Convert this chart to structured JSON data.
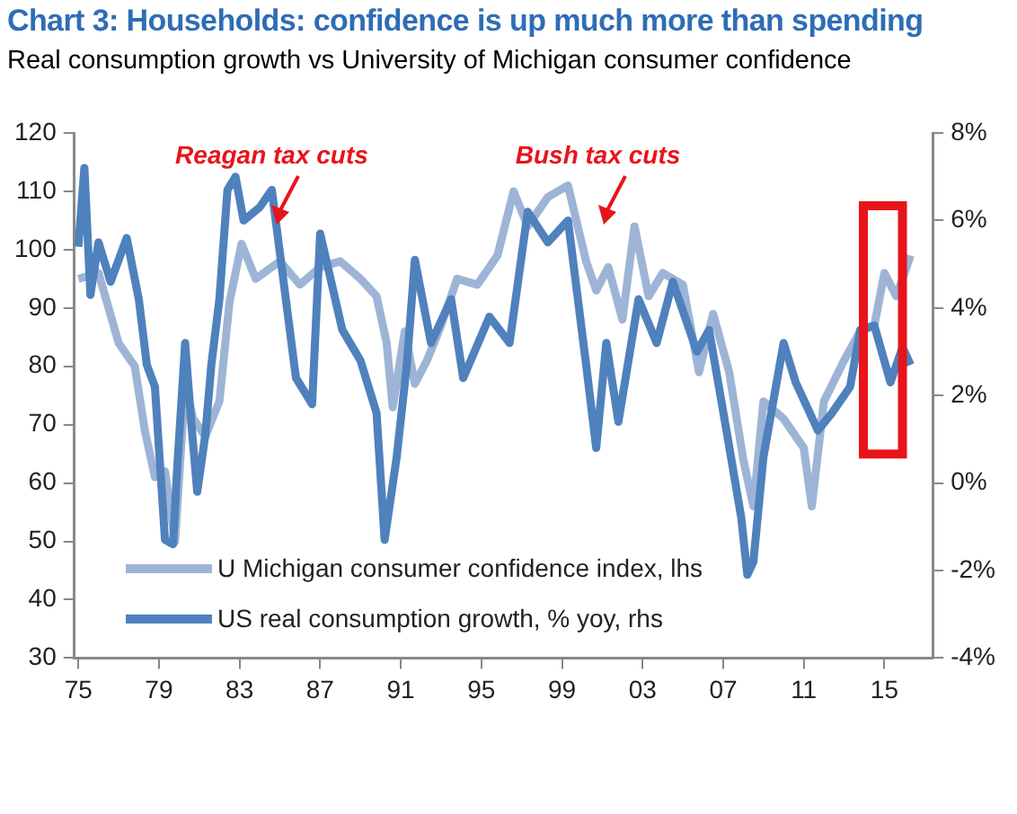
{
  "chart_data": {
    "type": "line",
    "title": "Chart 3: Households: confidence is up much more than spending",
    "subtitle": "Real consumption growth  vs University of Michigan consumer confidence",
    "annotations": [
      "Reagan tax cuts",
      "Bush tax cuts"
    ],
    "series": [
      {
        "name": "U Michigan consumer confidence index, lhs",
        "color": "#9db4d6",
        "x": [
          1975.0,
          1976.0,
          1977.0,
          1977.8,
          1978.3,
          1978.8,
          1979.3,
          1979.8,
          1980.3,
          1980.7,
          1981.3,
          1982.0,
          1982.5,
          1983.1,
          1983.8,
          1985.0,
          1986.0,
          1987.0,
          1988.0,
          1989.0,
          1989.8,
          1990.3,
          1990.6,
          1991.2,
          1991.7,
          1992.3,
          1993.0,
          1993.8,
          1994.8,
          1995.8,
          1996.6,
          1997.3,
          1998.3,
          1999.3,
          2000.2,
          2000.7,
          2001.3,
          2002.0,
          2002.6,
          2003.3,
          2004.0,
          2005.0,
          2005.8,
          2006.5,
          2007.3,
          2008.0,
          2008.5,
          2009.0,
          2010.0,
          2011.0,
          2011.4,
          2012.0,
          2013.0,
          2013.8,
          2014.5,
          2015.0,
          2015.6,
          2016.3
        ],
        "values": [
          95,
          96,
          84,
          80,
          69,
          61,
          62,
          50,
          77,
          71,
          68,
          74,
          91,
          101,
          95,
          98,
          94,
          97,
          98,
          95,
          92,
          84,
          73,
          86,
          77,
          81,
          87,
          95,
          94,
          99,
          110,
          104,
          109,
          111,
          98,
          93,
          97,
          88,
          104,
          92,
          96,
          94,
          79,
          89,
          79,
          64,
          56,
          74,
          71,
          66,
          56,
          74,
          81,
          86,
          87,
          96,
          92,
          99
        ]
      },
      {
        "name": "US real consumption growth, % yoy, rhs",
        "color": "#4f81bd",
        "axis": "y2",
        "x": [
          1975.0,
          1975.3,
          1975.6,
          1976.0,
          1976.6,
          1977.4,
          1978.0,
          1978.4,
          1978.8,
          1979.3,
          1979.7,
          1979.9,
          1980.3,
          1980.6,
          1980.9,
          1981.3,
          1981.6,
          1982.0,
          1982.4,
          1982.8,
          1983.2,
          1984.0,
          1984.6,
          1985.8,
          1986.6,
          1987.0,
          1988.1,
          1989.0,
          1989.8,
          1990.2,
          1990.8,
          1991.3,
          1991.7,
          1992.5,
          1993.5,
          1994.1,
          1995.4,
          1996.4,
          1997.3,
          1998.3,
          1999.3,
          2000.2,
          2000.7,
          2001.2,
          2001.8,
          2002.8,
          2003.7,
          2004.5,
          2005.7,
          2006.3,
          2007.2,
          2007.9,
          2008.2,
          2008.5,
          2009.0,
          2010.0,
          2010.6,
          2011.7,
          2012.4,
          2013.3,
          2013.8,
          2014.5,
          2015.3,
          2015.9,
          2016.3
        ],
        "values": [
          5.4,
          7.2,
          4.3,
          5.5,
          4.6,
          5.6,
          4.2,
          2.7,
          2.2,
          -1.3,
          -1.4,
          0.3,
          3.2,
          1.4,
          -0.2,
          1.1,
          2.7,
          4.2,
          6.7,
          7.0,
          6.0,
          6.3,
          6.7,
          2.4,
          1.8,
          5.7,
          3.5,
          2.8,
          1.6,
          -1.3,
          0.6,
          2.7,
          5.1,
          3.2,
          4.2,
          2.4,
          3.8,
          3.2,
          6.2,
          5.5,
          6.0,
          2.7,
          0.8,
          3.2,
          1.4,
          4.2,
          3.2,
          4.6,
          3.0,
          3.5,
          1.1,
          -0.8,
          -2.1,
          -1.8,
          0.6,
          3.2,
          2.3,
          1.2,
          1.6,
          2.2,
          3.5,
          3.6,
          2.3,
          3.1,
          2.7
        ]
      }
    ],
    "xlim": [
      1974.8,
      2017.4
    ],
    "xticks": [
      {
        "value": 1975,
        "label": "75"
      },
      {
        "value": 1979,
        "label": "79"
      },
      {
        "value": 1983,
        "label": "83"
      },
      {
        "value": 1987,
        "label": "87"
      },
      {
        "value": 1991,
        "label": "91"
      },
      {
        "value": 1995,
        "label": "95"
      },
      {
        "value": 1999,
        "label": "99"
      },
      {
        "value": 2003,
        "label": "03"
      },
      {
        "value": 2007,
        "label": "07"
      },
      {
        "value": 2011,
        "label": "11"
      },
      {
        "value": 2015,
        "label": "15"
      }
    ],
    "ylim": [
      30,
      120
    ],
    "yticks": [
      30,
      40,
      50,
      60,
      70,
      80,
      90,
      100,
      110,
      120
    ],
    "y2lim": [
      -4,
      8
    ],
    "y2ticks": [
      {
        "value": -4,
        "label": "-4%"
      },
      {
        "value": -2,
        "label": "-2%"
      },
      {
        "value": 0,
        "label": "0%"
      },
      {
        "value": 2,
        "label": "2%"
      },
      {
        "value": 4,
        "label": "4%"
      },
      {
        "value": 6,
        "label": "6%"
      },
      {
        "value": 8,
        "label": "8%"
      }
    ],
    "grid": false,
    "legend": "bottom",
    "marker": "none",
    "line_style": "solid"
  }
}
